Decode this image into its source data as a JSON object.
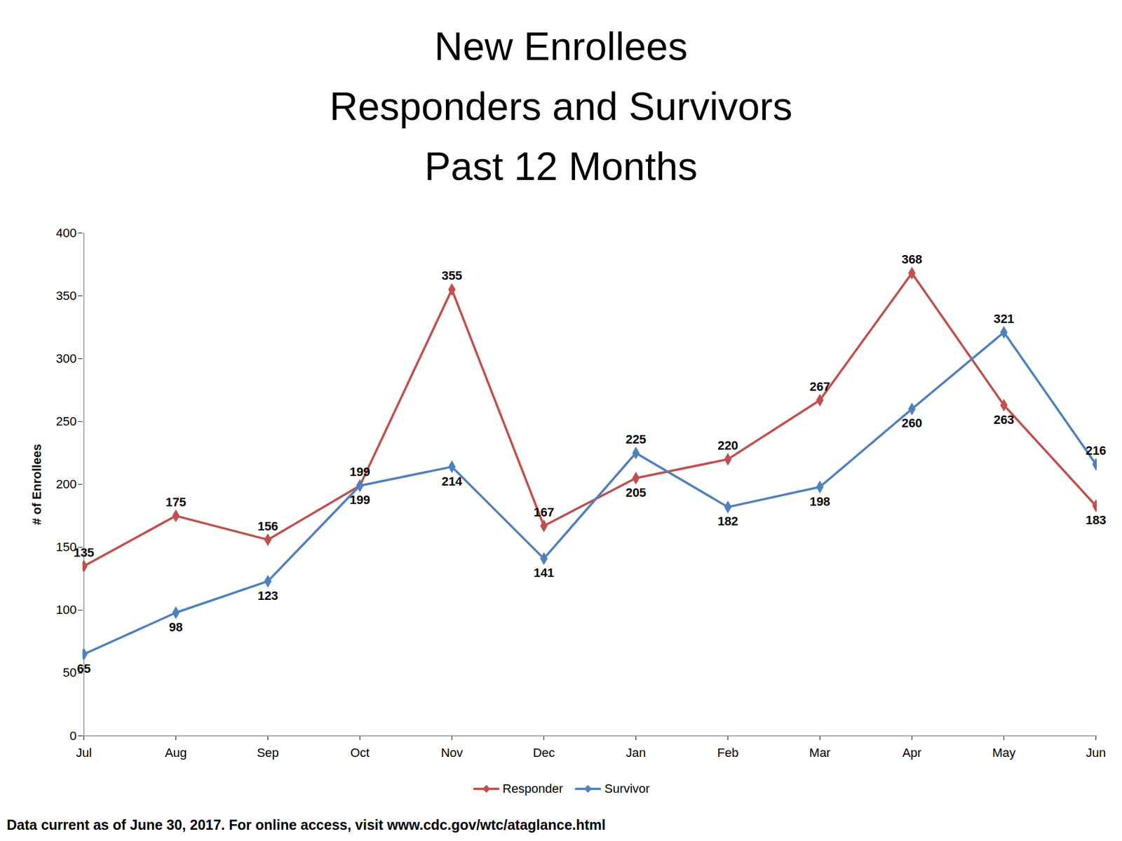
{
  "chart_data": {
    "type": "line",
    "title": "New Enrollees\nResponders and Survivors\nPast 12 Months",
    "y_label": "# of Enrollees",
    "caption": "Data current as of June 30, 2017. For online access, visit www.cdc.gov/wtc/ataglance.html",
    "categories": [
      "Jul",
      "Aug",
      "Sep",
      "Oct",
      "Nov",
      "Dec",
      "Jan",
      "Feb",
      "Mar",
      "Apr",
      "May",
      "Jun"
    ],
    "series": [
      {
        "name": "Responder",
        "color": "#c0504d",
        "marker": "diamond",
        "values": [
          135,
          175,
          156,
          199,
          355,
          167,
          205,
          220,
          267,
          368,
          263,
          183
        ]
      },
      {
        "name": "Survivor",
        "color": "#4f81bd",
        "marker": "diamond",
        "values": [
          65,
          98,
          123,
          199,
          214,
          141,
          225,
          182,
          198,
          260,
          321,
          216
        ]
      }
    ],
    "ylim": [
      0,
      400
    ],
    "yticks": [
      0,
      50,
      100,
      150,
      200,
      250,
      300,
      350,
      400
    ],
    "grid": false,
    "legend": "bottom",
    "data_labels": true
  }
}
